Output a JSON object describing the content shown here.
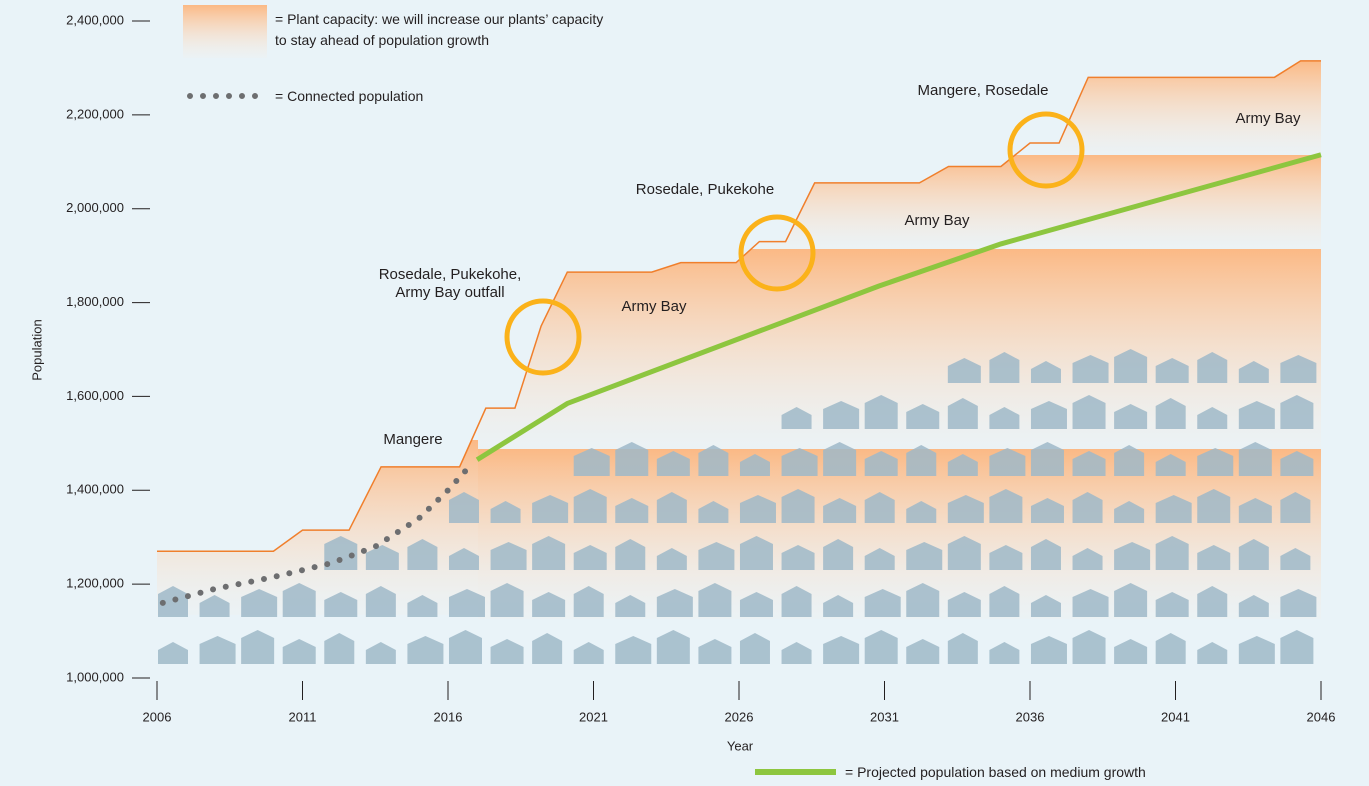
{
  "chart_data": {
    "type": "line",
    "x_label": "Year",
    "y_label": "Population",
    "legend_separator": "=",
    "xlim": [
      2006,
      2046
    ],
    "xticks": [
      2006,
      2011,
      2016,
      2021,
      2026,
      2031,
      2036,
      2041,
      2046
    ],
    "ylim": [
      1000000,
      2400000
    ],
    "yticks": [
      {
        "value": 1000000,
        "label": "1,000,000"
      },
      {
        "value": 1200000,
        "label": "1,200,000"
      },
      {
        "value": 1400000,
        "label": "1,400,000"
      },
      {
        "value": 1600000,
        "label": "1,600,000"
      },
      {
        "value": 1800000,
        "label": "1,800,000"
      },
      {
        "value": 2000000,
        "label": "2,000,000"
      },
      {
        "value": 2200000,
        "label": "2,200,000"
      },
      {
        "value": 2400000,
        "label": "2,400,000"
      }
    ],
    "series": [
      {
        "name": "Plant capacity: we will increase our plants’ capacity\nto stay ahead of population growth",
        "color": "#f07f2c",
        "style": "area",
        "x": [
          2006,
          2010,
          2011,
          2012.6,
          2013.7,
          2016.4,
          2017.3,
          2018.3,
          2019.2,
          2020.1,
          2023,
          2024,
          2025.9,
          2026.7,
          2027.6,
          2028.6,
          2032.2,
          2033.2,
          2035,
          2036,
          2037,
          2038,
          2044.4,
          2045.3,
          2046
        ],
        "values": [
          1270000,
          1270000,
          1315000,
          1315000,
          1450000,
          1450000,
          1575000,
          1575000,
          1750000,
          1865000,
          1865000,
          1885000,
          1885000,
          1930000,
          1930000,
          2055000,
          2055000,
          2090000,
          2090000,
          2140000,
          2140000,
          2280000,
          2280000,
          2315000,
          2315000
        ]
      },
      {
        "name": "Connected population",
        "color": "#6d6e70",
        "style": "dotted",
        "x": [
          2006.2,
          2008,
          2010,
          2012,
          2013.5,
          2015,
          2016,
          2016.8
        ],
        "values": [
          1160000,
          1190000,
          1215000,
          1245000,
          1280000,
          1340000,
          1400000,
          1455000
        ]
      },
      {
        "name": "Projected population based on medium growth",
        "color": "#8dc63f",
        "style": "solid",
        "x": [
          2017,
          2020.1,
          2030.8,
          2035,
          2046
        ],
        "values": [
          1465000,
          1585000,
          1835000,
          1925000,
          2115000
        ]
      }
    ],
    "annotations": [
      "Mangere",
      "Rosedale, Pukekohe,",
      "Army Bay outfall",
      "Army Bay",
      "Rosedale, Pukekohe",
      "Army Bay",
      "Mangere, Rosedale",
      "Army Bay"
    ]
  }
}
